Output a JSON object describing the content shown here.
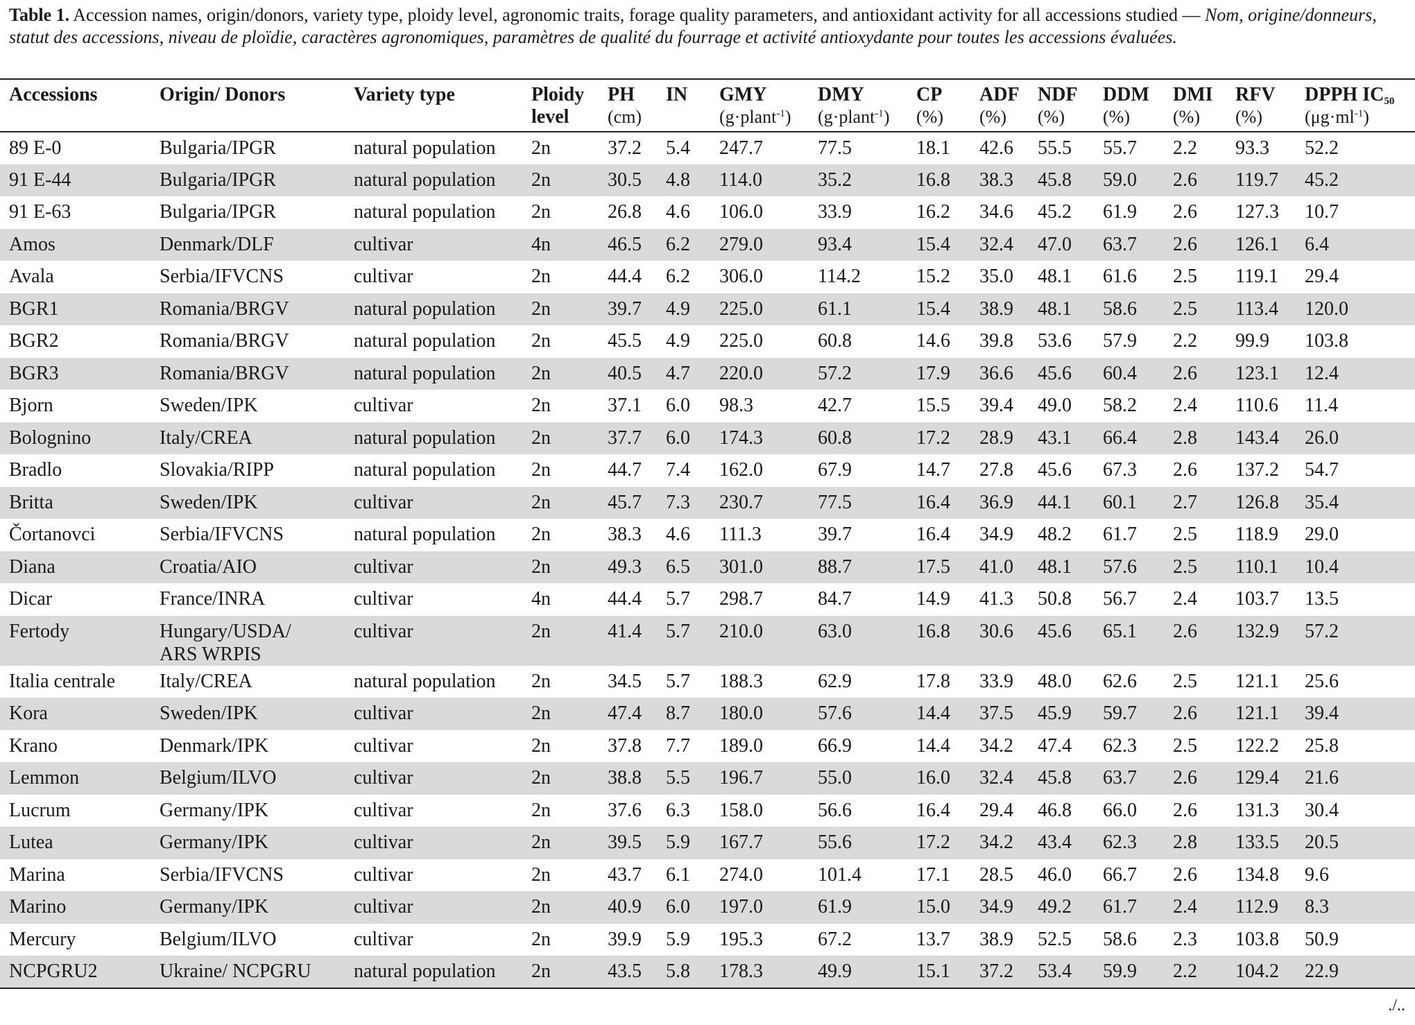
{
  "caption": {
    "label": "Table 1.",
    "text": "Accession names, origin/donors, variety type, ploidy level, agronomic traits, forage quality parameters, and antioxidant activity for all accessions studied —",
    "french": "Nom, origine/donneurs, statut des accessions, niveau de ploïdie, caractères agronomiques, paramètres de qualité du fourrage et activité antioxydante pour toutes les accessions évaluées."
  },
  "table": {
    "headers": [
      {
        "name": "Accessions"
      },
      {
        "name": "Origin/ Donors"
      },
      {
        "name": "Variety type"
      },
      {
        "name": "Ploidy level"
      },
      {
        "name": "PH",
        "unit": {
          "base": "(cm)"
        }
      },
      {
        "name": "IN"
      },
      {
        "name": "GMY",
        "unit": {
          "base": "(g·plant",
          "sup": "-1",
          "tail": ")"
        }
      },
      {
        "name": "DMY",
        "unit": {
          "base": "(g·plant",
          "sup": "-1",
          "tail": ")"
        }
      },
      {
        "name": "CP",
        "unit": {
          "base": "(%)"
        }
      },
      {
        "name": "ADF",
        "unit": {
          "base": "(%)"
        }
      },
      {
        "name": "NDF",
        "unit": {
          "base": "(%)"
        }
      },
      {
        "name": "DDM",
        "unit": {
          "base": "(%)"
        }
      },
      {
        "name": "DMI",
        "unit": {
          "base": "(%)"
        }
      },
      {
        "name": "RFV",
        "unit": {
          "base": "(%)"
        }
      },
      {
        "name": "DPPH IC",
        "sub": "50",
        "unit": {
          "base": "(μg·ml",
          "sup": "-1",
          "tail": ")"
        }
      }
    ],
    "rows": [
      [
        "89 E-0",
        "Bulgaria/IPGR",
        "natural population",
        "2n",
        "37.2",
        "5.4",
        "247.7",
        "77.5",
        "18.1",
        "42.6",
        "55.5",
        "55.7",
        "2.2",
        "93.3",
        "52.2"
      ],
      [
        "91 E-44",
        "Bulgaria/IPGR",
        "natural population",
        "2n",
        "30.5",
        "4.8",
        "114.0",
        "35.2",
        "16.8",
        "38.3",
        "45.8",
        "59.0",
        "2.6",
        "119.7",
        "45.2"
      ],
      [
        "91 E-63",
        "Bulgaria/IPGR",
        "natural population",
        "2n",
        "26.8",
        "4.6",
        "106.0",
        "33.9",
        "16.2",
        "34.6",
        "45.2",
        "61.9",
        "2.6",
        "127.3",
        "10.7"
      ],
      [
        "Amos",
        "Denmark/DLF",
        "cultivar",
        "4n",
        "46.5",
        "6.2",
        "279.0",
        "93.4",
        "15.4",
        "32.4",
        "47.0",
        "63.7",
        "2.6",
        "126.1",
        "6.4"
      ],
      [
        "Avala",
        "Serbia/IFVCNS",
        "cultivar",
        "2n",
        "44.4",
        "6.2",
        "306.0",
        "114.2",
        "15.2",
        "35.0",
        "48.1",
        "61.6",
        "2.5",
        "119.1",
        "29.4"
      ],
      [
        "BGR1",
        "Romania/BRGV",
        "natural population",
        "2n",
        "39.7",
        "4.9",
        "225.0",
        "61.1",
        "15.4",
        "38.9",
        "48.1",
        "58.6",
        "2.5",
        "113.4",
        "120.0"
      ],
      [
        "BGR2",
        "Romania/BRGV",
        "natural population",
        "2n",
        "45.5",
        "4.9",
        "225.0",
        "60.8",
        "14.6",
        "39.8",
        "53.6",
        "57.9",
        "2.2",
        "99.9",
        "103.8"
      ],
      [
        "BGR3",
        "Romania/BRGV",
        "natural population",
        "2n",
        "40.5",
        "4.7",
        "220.0",
        "57.2",
        "17.9",
        "36.6",
        "45.6",
        "60.4",
        "2.6",
        "123.1",
        "12.4"
      ],
      [
        "Bjorn",
        "Sweden/IPK",
        "cultivar",
        "2n",
        "37.1",
        "6.0",
        "98.3",
        "42.7",
        "15.5",
        "39.4",
        "49.0",
        "58.2",
        "2.4",
        "110.6",
        "11.4"
      ],
      [
        "Bolognino",
        "Italy/CREA",
        "natural population",
        "2n",
        "37.7",
        "6.0",
        "174.3",
        "60.8",
        "17.2",
        "28.9",
        "43.1",
        "66.4",
        "2.8",
        "143.4",
        "26.0"
      ],
      [
        "Bradlo",
        "Slovakia/RIPP",
        "natural population",
        "2n",
        "44.7",
        "7.4",
        "162.0",
        "67.9",
        "14.7",
        "27.8",
        "45.6",
        "67.3",
        "2.6",
        "137.2",
        "54.7"
      ],
      [
        "Britta",
        "Sweden/IPK",
        "cultivar",
        "2n",
        "45.7",
        "7.3",
        "230.7",
        "77.5",
        "16.4",
        "36.9",
        "44.1",
        "60.1",
        "2.7",
        "126.8",
        "35.4"
      ],
      [
        "Čortanovci",
        "Serbia/IFVCNS",
        "natural population",
        "2n",
        "38.3",
        "4.6",
        "111.3",
        "39.7",
        "16.4",
        "34.9",
        "48.2",
        "61.7",
        "2.5",
        "118.9",
        "29.0"
      ],
      [
        "Diana",
        "Croatia/AIO",
        "cultivar",
        "2n",
        "49.3",
        "6.5",
        "301.0",
        "88.7",
        "17.5",
        "41.0",
        "48.1",
        "57.6",
        "2.5",
        "110.1",
        "10.4"
      ],
      [
        "Dicar",
        "France/INRA",
        "cultivar",
        "4n",
        "44.4",
        "5.7",
        "298.7",
        "84.7",
        "14.9",
        "41.3",
        "50.8",
        "56.7",
        "2.4",
        "103.7",
        "13.5"
      ],
      [
        "Fertody",
        [
          "Hungary/USDA/",
          "ARS WRPIS"
        ],
        "cultivar",
        "2n",
        "41.4",
        "5.7",
        "210.0",
        "63.0",
        "16.8",
        "30.6",
        "45.6",
        "65.1",
        "2.6",
        "132.9",
        "57.2"
      ],
      [
        "Italia centrale",
        "Italy/CREA",
        "natural population",
        "2n",
        "34.5",
        "5.7",
        "188.3",
        "62.9",
        "17.8",
        "33.9",
        "48.0",
        "62.6",
        "2.5",
        "121.1",
        "25.6"
      ],
      [
        "Kora",
        "Sweden/IPK",
        "cultivar",
        "2n",
        "47.4",
        "8.7",
        "180.0",
        "57.6",
        "14.4",
        "37.5",
        "45.9",
        "59.7",
        "2.6",
        "121.1",
        "39.4"
      ],
      [
        "Krano",
        "Denmark/IPK",
        "cultivar",
        "2n",
        "37.8",
        "7.7",
        "189.0",
        "66.9",
        "14.4",
        "34.2",
        "47.4",
        "62.3",
        "2.5",
        "122.2",
        "25.8"
      ],
      [
        "Lemmon",
        "Belgium/ILVO",
        "cultivar",
        "2n",
        "38.8",
        "5.5",
        "196.7",
        "55.0",
        "16.0",
        "32.4",
        "45.8",
        "63.7",
        "2.6",
        "129.4",
        "21.6"
      ],
      [
        "Lucrum",
        "Germany/IPK",
        "cultivar",
        "2n",
        "37.6",
        "6.3",
        "158.0",
        "56.6",
        "16.4",
        "29.4",
        "46.8",
        "66.0",
        "2.6",
        "131.3",
        "30.4"
      ],
      [
        "Lutea",
        "Germany/IPK",
        "cultivar",
        "2n",
        "39.5",
        "5.9",
        "167.7",
        "55.6",
        "17.2",
        "34.2",
        "43.4",
        "62.3",
        "2.8",
        "133.5",
        "20.5"
      ],
      [
        "Marina",
        "Serbia/IFVCNS",
        "cultivar",
        "2n",
        "43.7",
        "6.1",
        "274.0",
        "101.4",
        "17.1",
        "28.5",
        "46.0",
        "66.7",
        "2.6",
        "134.8",
        "9.6"
      ],
      [
        "Marino",
        "Germany/IPK",
        "cultivar",
        "2n",
        "40.9",
        "6.0",
        "197.0",
        "61.9",
        "15.0",
        "34.9",
        "49.2",
        "61.7",
        "2.4",
        "112.9",
        "8.3"
      ],
      [
        "Mercury",
        "Belgium/ILVO",
        "cultivar",
        "2n",
        "39.9",
        "5.9",
        "195.3",
        "67.2",
        "13.7",
        "38.9",
        "52.5",
        "58.6",
        "2.3",
        "103.8",
        "50.9"
      ],
      [
        "NCPGRU2",
        "Ukraine/ NCPGRU",
        "natural population",
        "2n",
        "43.5",
        "5.8",
        "178.3",
        "49.9",
        "15.1",
        "37.2",
        "53.4",
        "59.9",
        "2.2",
        "104.2",
        "22.9"
      ]
    ]
  },
  "footer": "./.."
}
